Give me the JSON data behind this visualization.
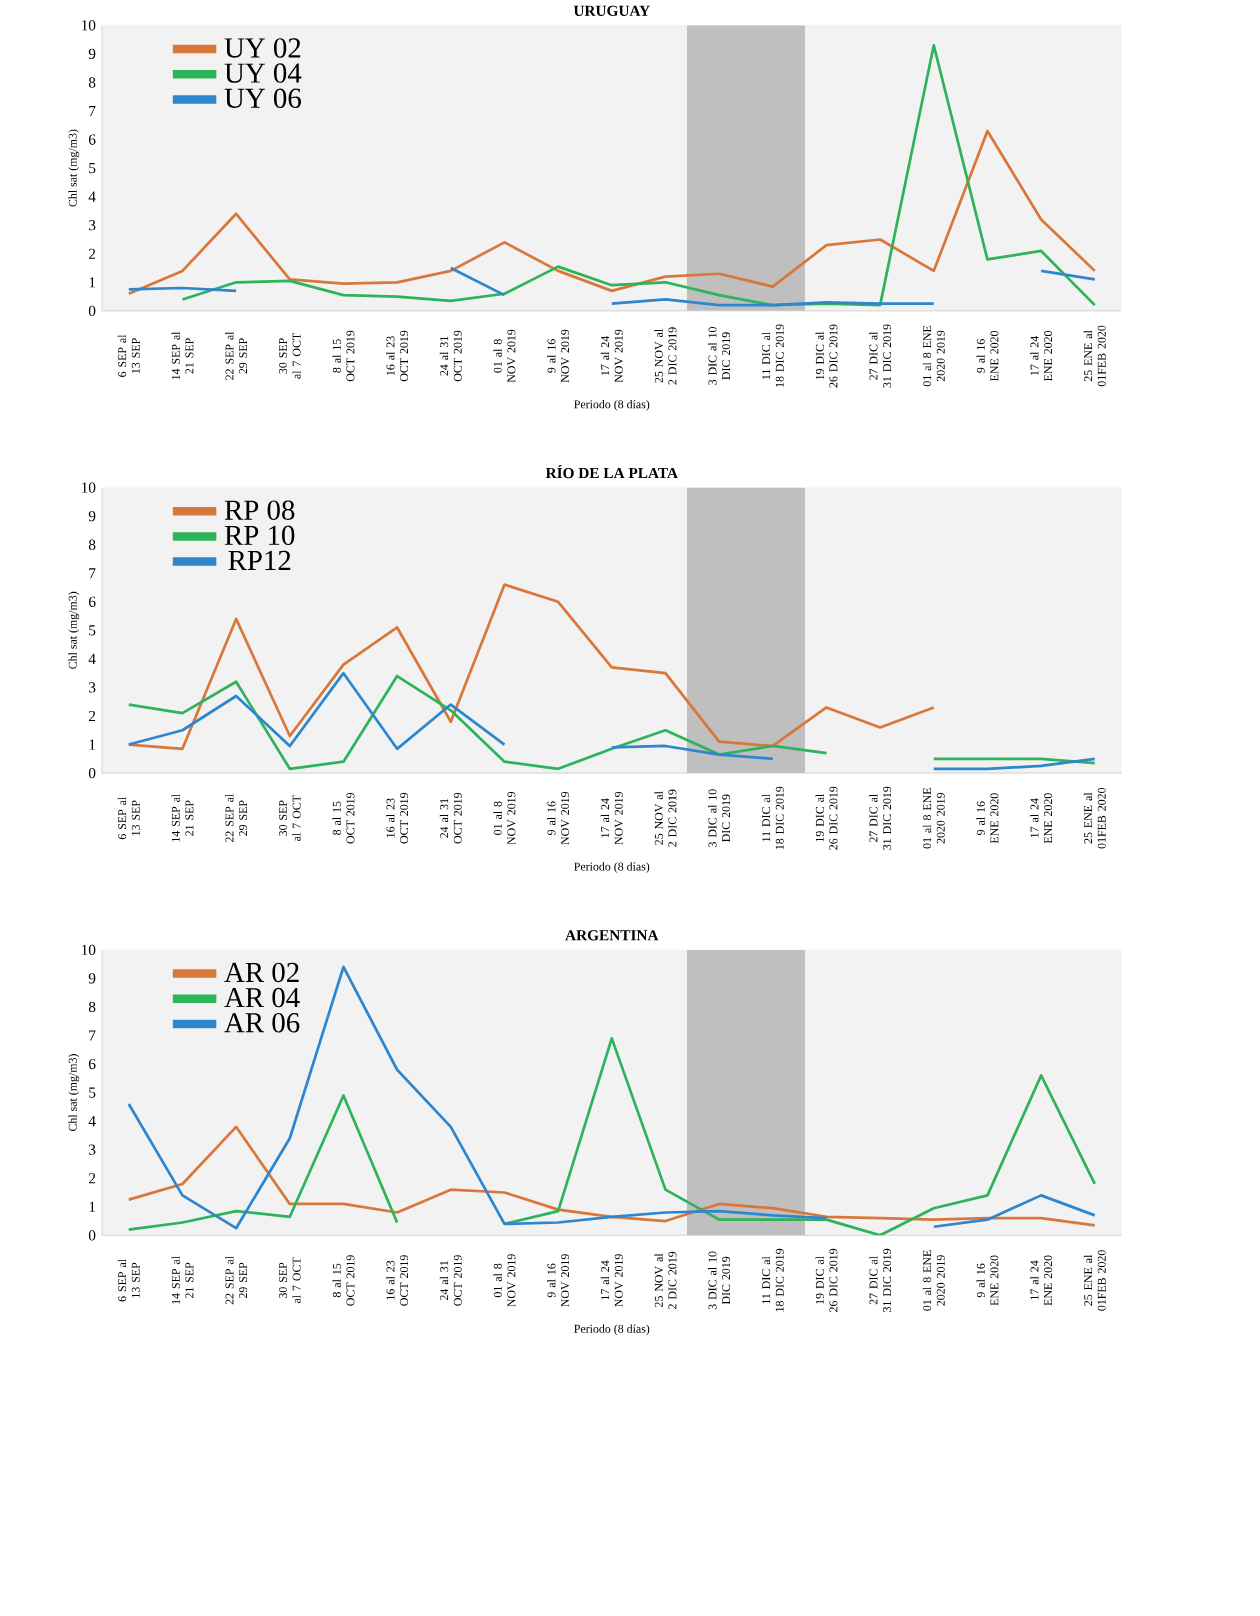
{
  "chart_data": [
    {
      "type": "line",
      "title": "URUGUAY",
      "xlabel": "Periodo (8 días)",
      "ylabel": "Chl sat (mg/m3)",
      "categories": [
        "6 SEP al 13 SEP",
        "14 SEP al 21 SEP",
        "22 SEP al 29 SEP",
        "30 SEP al 7 OCT",
        "8 al 15 OCT 2019",
        "16 al 23 OCT 2019",
        "24 al 31 OCT 2019",
        "01 al 8 NOV 2019",
        "9 al 16 NOV 2019",
        "17 al 24 NOV 2019",
        "25 NOV al 2 DIC 2019",
        "3 DIC al 10 DIC 2019",
        "11 DIC al 18 DIC 2019",
        "19 DIC al 26 DIC 2019",
        "27 DIC al 31 DIC 2019",
        "01 al 8 ENE 2020 2019",
        "9 al 16 ENE 2020",
        "17 al 24 ENE 2020",
        "25 ENE al 01FEB 2020"
      ],
      "series": [
        {
          "name": "UY 02",
          "color": "#d9773a",
          "values": [
            0.6,
            1.4,
            3.4,
            1.1,
            0.95,
            1.0,
            1.4,
            2.4,
            1.4,
            0.7,
            1.2,
            1.3,
            0.85,
            2.3,
            2.5,
            1.4,
            6.3,
            3.2,
            1.4
          ]
        },
        {
          "name": "UY 04",
          "color": "#2eb35a",
          "values": [
            null,
            0.4,
            1.0,
            1.05,
            0.55,
            0.5,
            0.35,
            0.6,
            1.55,
            0.9,
            1.0,
            0.55,
            0.2,
            0.25,
            0.2,
            9.3,
            1.8,
            2.1,
            0.2
          ]
        },
        {
          "name": "UY 06",
          "color": "#2e86cf",
          "values": [
            0.75,
            0.8,
            0.7,
            null,
            null,
            null,
            1.5,
            0.55,
            null,
            0.25,
            0.4,
            0.2,
            0.2,
            0.3,
            0.25,
            0.25,
            null,
            1.4,
            1.1
          ]
        }
      ],
      "ylim": [
        0,
        10
      ],
      "yticks": [
        0,
        1,
        2,
        3,
        4,
        5,
        6,
        7,
        8,
        9,
        10
      ],
      "bands": [
        {
          "axis": "x",
          "from": "3 DIC al 10 DIC 2019",
          "to": "11 DIC al 18 DIC 2019",
          "color": "#bfbfbf"
        }
      ],
      "legend": "top left"
    },
    {
      "type": "line",
      "title": "RÍO DE LA PLATA",
      "xlabel": "Periodo (8 días)",
      "ylabel": "Chl sat (mg/m3)",
      "categories": [
        "6 SEP al 13 SEP",
        "14 SEP al 21 SEP",
        "22 SEP al 29 SEP",
        "30 SEP al 7 OCT",
        "8 al 15 OCT 2019",
        "16 al 23 OCT 2019",
        "24 al 31 OCT 2019",
        "01 al 8 NOV 2019",
        "9 al 16 NOV 2019",
        "17 al 24 NOV 2019",
        "25 NOV al 2 DIC 2019",
        "3 DIC al 10 DIC 2019",
        "11 DIC al 18 DIC 2019",
        "19 DIC al 26 DIC 2019",
        "27 DIC al 31 DIC 2019",
        "01 al 8 ENE 2020 2019",
        "9 al 16 ENE 2020",
        "17 al 24 ENE 2020",
        "25 ENE al 01FEB 2020"
      ],
      "series": [
        {
          "name": "RP 08",
          "color": "#d9773a",
          "values": [
            1.0,
            0.85,
            5.4,
            1.3,
            3.8,
            5.1,
            1.8,
            6.6,
            6.0,
            3.7,
            3.5,
            1.1,
            0.95,
            2.3,
            1.6,
            2.3,
            null,
            null,
            null
          ]
        },
        {
          "name": "RP 10",
          "color": "#2eb35a",
          "values": [
            2.4,
            2.1,
            3.2,
            0.15,
            0.4,
            3.4,
            2.2,
            0.4,
            0.15,
            0.85,
            1.5,
            0.65,
            0.95,
            0.7,
            null,
            0.5,
            0.5,
            0.5,
            0.35
          ]
        },
        {
          "name": "RP12",
          "color": "#2e86cf",
          "values": [
            1.0,
            1.5,
            2.7,
            0.95,
            3.5,
            0.85,
            2.4,
            1.0,
            null,
            0.9,
            0.95,
            0.65,
            0.5,
            null,
            null,
            0.15,
            0.15,
            0.25,
            0.5
          ]
        }
      ],
      "ylim": [
        0,
        10
      ],
      "yticks": [
        0,
        1,
        2,
        3,
        4,
        5,
        6,
        7,
        8,
        9,
        10
      ],
      "bands": [
        {
          "axis": "x",
          "from": "3 DIC al 10 DIC 2019",
          "to": "11 DIC al 18 DIC 2019",
          "color": "#bfbfbf"
        }
      ],
      "legend": "top left"
    },
    {
      "type": "line",
      "title": "ARGENTINA",
      "xlabel": "Periodo (8 días)",
      "ylabel": "Chl sat (mg/m3)",
      "categories": [
        "6 SEP al 13 SEP",
        "14 SEP al 21 SEP",
        "22 SEP al 29 SEP",
        "30 SEP al 7 OCT",
        "8 al 15 OCT 2019",
        "16 al 23 OCT 2019",
        "24 al 31 OCT 2019",
        "01 al 8 NOV 2019",
        "9 al 16 NOV 2019",
        "17 al 24 NOV 2019",
        "25 NOV al 2 DIC 2019",
        "3 DIC al 10 DIC 2019",
        "11 DIC al 18 DIC 2019",
        "19 DIC al 26 DIC 2019",
        "27 DIC al 31 DIC 2019",
        "01 al 8 ENE 2020 2019",
        "9 al 16 ENE 2020",
        "17 al 24 ENE 2020",
        "25 ENE al 01FEB 2020"
      ],
      "series": [
        {
          "name": "AR 02",
          "color": "#d9773a",
          "values": [
            1.25,
            1.8,
            3.8,
            1.1,
            1.1,
            0.8,
            1.6,
            1.5,
            0.9,
            0.65,
            0.5,
            1.1,
            0.95,
            0.65,
            0.6,
            0.55,
            0.6,
            0.6,
            0.35
          ]
        },
        {
          "name": "AR 04",
          "color": "#2eb35a",
          "values": [
            0.2,
            0.45,
            0.85,
            0.65,
            4.9,
            0.45,
            null,
            0.4,
            0.85,
            6.9,
            1.6,
            0.55,
            0.55,
            0.55,
            0.0,
            0.95,
            1.4,
            5.6,
            1.8
          ]
        },
        {
          "name": "AR 06",
          "color": "#2e86cf",
          "values": [
            4.6,
            1.4,
            0.25,
            3.4,
            9.4,
            5.8,
            3.8,
            0.4,
            0.45,
            0.65,
            0.8,
            0.85,
            0.7,
            0.6,
            null,
            0.3,
            0.55,
            1.4,
            0.7
          ]
        }
      ],
      "ylim": [
        0,
        10
      ],
      "yticks": [
        0,
        1,
        2,
        3,
        4,
        5,
        6,
        7,
        8,
        9,
        10
      ],
      "bands": [
        {
          "axis": "x",
          "from": "3 DIC al 10 DIC 2019",
          "to": "11 DIC al 18 DIC 2019",
          "color": "#bfbfbf"
        }
      ],
      "legend": "top left"
    }
  ]
}
